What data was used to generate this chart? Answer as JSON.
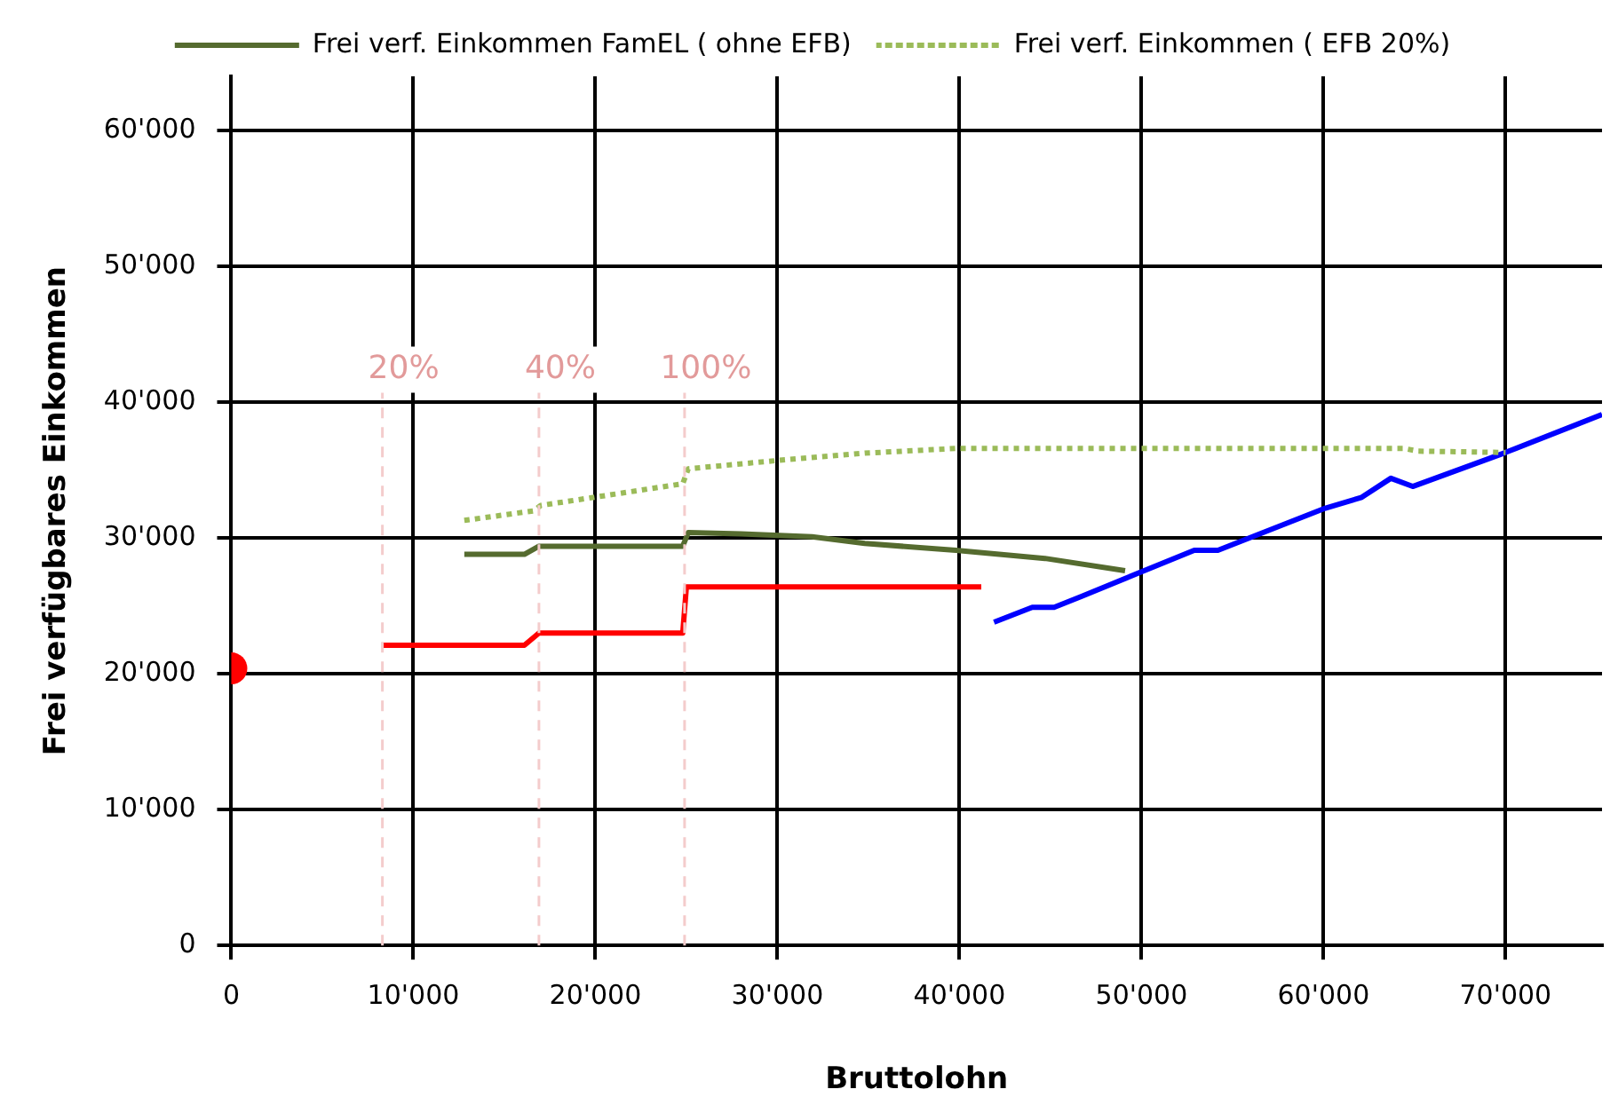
{
  "chart_data": {
    "type": "line",
    "xlabel": "Bruttolohn",
    "ylabel": "Frei verfügbares Einkommen",
    "xlim": [
      0,
      75300
    ],
    "ylim": [
      0,
      64000
    ],
    "xticks": [
      {
        "value": 0,
        "label": "0"
      },
      {
        "value": 10000,
        "label": "10'000"
      },
      {
        "value": 20000,
        "label": "20'000"
      },
      {
        "value": 30000,
        "label": "30'000"
      },
      {
        "value": 40000,
        "label": "40'000"
      },
      {
        "value": 50000,
        "label": "50'000"
      },
      {
        "value": 60000,
        "label": "60'000"
      },
      {
        "value": 70000,
        "label": "70'000"
      }
    ],
    "yticks": [
      {
        "value": 0,
        "label": "0"
      },
      {
        "value": 10000,
        "label": "10'000"
      },
      {
        "value": 20000,
        "label": "20'000"
      },
      {
        "value": 30000,
        "label": "30'000"
      },
      {
        "value": 40000,
        "label": "40'000"
      },
      {
        "value": 50000,
        "label": "50'000"
      },
      {
        "value": 60000,
        "label": "60'000"
      }
    ],
    "grid": true,
    "legend": "top",
    "marker": "none",
    "ref_lines": [
      {
        "axis": "x",
        "value": 8300,
        "color": "#f4cccc",
        "line_style": "dashed"
      },
      {
        "axis": "x",
        "value": 16900,
        "color": "#f4cccc",
        "line_style": "dashed"
      },
      {
        "axis": "x",
        "value": 24900,
        "color": "#f4cccc",
        "line_style": "dashed"
      }
    ],
    "annotations": [
      {
        "text": "20%",
        "x": 8300,
        "y": 42400
      },
      {
        "text": "40%",
        "x": 16900,
        "y": 42400
      },
      {
        "text": "100%",
        "x": 24900,
        "y": 42400
      }
    ],
    "series": [
      {
        "name": "Frei verf. Einkommen FamEL ( ohne EFB)",
        "color": "#556b2f",
        "line_style": "solid",
        "x": [
          12800,
          16100,
          16900,
          24800,
          25100,
          28000,
          31900,
          34800,
          39800,
          44700,
          49100
        ],
        "values": [
          28800,
          28800,
          29400,
          29400,
          30400,
          30300,
          30100,
          29600,
          29100,
          28500,
          27600
        ]
      },
      {
        "name": "Frei verf. Einkommen ( EFB 20%)",
        "color": "#9bbb59",
        "line_style": "dotted",
        "x": [
          12800,
          16600,
          17000,
          24800,
          25100,
          29900,
          34800,
          39800,
          64400,
          65200,
          70000
        ],
        "values": [
          31300,
          32000,
          32400,
          34000,
          35100,
          35700,
          36250,
          36600,
          36600,
          36400,
          36300
        ]
      },
      {
        "color": "#ff0000",
        "line_style": "solid",
        "x": [
          8300,
          16100,
          16900,
          24800,
          25000,
          41200
        ],
        "values": [
          22100,
          22100,
          23000,
          23000,
          26400,
          26400
        ]
      },
      {
        "color": "#0000ff",
        "line_style": "solid",
        "x": [
          41900,
          44000,
          45200,
          46700,
          52900,
          54200,
          60100,
          62100,
          63700,
          64900,
          70000,
          75300
        ],
        "values": [
          23800,
          24900,
          24900,
          25700,
          29100,
          29100,
          32200,
          33000,
          34400,
          33800,
          36300,
          39100
        ]
      },
      {
        "type": "scatter",
        "marker": "circle",
        "color": "#ff0000",
        "x": [
          0
        ],
        "values": [
          20400
        ]
      }
    ]
  }
}
